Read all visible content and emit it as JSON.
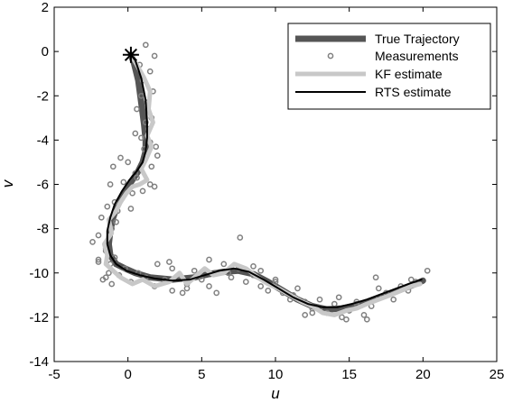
{
  "chart_data": {
    "type": "line",
    "title": "",
    "xlabel": "u",
    "ylabel": "v",
    "xlim": [
      -5,
      25
    ],
    "ylim": [
      -14,
      2
    ],
    "xticks": [
      -5,
      0,
      5,
      10,
      15,
      20,
      25
    ],
    "yticks": [
      -14,
      -12,
      -10,
      -8,
      -6,
      -4,
      -2,
      0,
      2
    ],
    "grid": false,
    "legend_position": "top-right",
    "start_marker": {
      "x": 0.2,
      "y": -0.15,
      "symbol": "asterisk"
    },
    "series": [
      {
        "name": "True Trajectory",
        "kind": "line",
        "color": "#555555",
        "x": [
          0.2,
          0.4,
          0.7,
          0.9,
          1.1,
          1.2,
          1.2,
          1.0,
          0.7,
          0.3,
          -0.2,
          -0.7,
          -1.0,
          -1.2,
          -1.3,
          -1.2,
          -0.8,
          -0.2,
          0.5,
          1.5,
          3.0,
          4.5,
          5.5,
          6.5,
          7.5,
          8.5,
          9.5,
          10.5,
          11.5,
          12.5,
          13.5,
          14.5,
          15.5,
          16.5,
          17.5,
          18.5,
          19.5,
          20.0
        ],
        "y": [
          -0.15,
          -0.5,
          -1.3,
          -2.3,
          -3.3,
          -4.0,
          -4.5,
          -5.0,
          -5.4,
          -5.8,
          -6.3,
          -6.9,
          -7.5,
          -8.1,
          -8.7,
          -9.2,
          -9.6,
          -9.8,
          -10.0,
          -10.2,
          -10.3,
          -10.2,
          -10.05,
          -9.95,
          -9.9,
          -10.05,
          -10.4,
          -10.8,
          -11.2,
          -11.5,
          -11.65,
          -11.6,
          -11.45,
          -11.25,
          -11.0,
          -10.75,
          -10.5,
          -10.35
        ]
      },
      {
        "name": "Measurements",
        "kind": "scatter",
        "color": "#808080",
        "x": [
          1.2,
          1.8,
          0.8,
          1.5,
          1.0,
          1.7,
          1.3,
          0.6,
          1.6,
          1.4,
          0.9,
          1.1,
          2.0,
          1.6,
          0.5,
          1.8,
          1.2,
          0.9,
          1.5,
          1.9,
          0.0,
          -0.5,
          -1.0,
          -1.2,
          -0.3,
          0.3,
          1.0,
          0.6,
          -0.9,
          -1.4,
          -1.8,
          -0.7,
          -1.1,
          -2.0,
          -1.5,
          -0.8,
          0.2,
          -1.5,
          -0.9,
          -1.2,
          -1.3,
          -2.0,
          -1.7,
          -2.4,
          -2.0,
          -1.5,
          -1.1,
          -0.6,
          -0.2,
          0.2,
          0.7,
          1.2,
          1.8,
          2.5,
          3.0,
          3.5,
          4.0,
          4.5,
          5.0,
          5.5,
          6.0,
          6.5,
          7.0,
          7.5,
          8.0,
          8.5,
          9.0,
          9.5,
          10.0,
          10.5,
          11.0,
          11.5,
          12.0,
          12.5,
          13.0,
          13.5,
          14.0,
          14.5,
          15.0,
          15.5,
          16.0,
          16.5,
          17.0,
          17.5,
          18.0,
          18.5,
          19.0,
          19.5,
          20.3,
          2.0,
          3.0,
          4.0,
          5.5,
          7.6,
          9.0,
          11.2,
          13.0,
          15.5,
          16.2,
          2.8,
          6.0,
          10.0,
          12.5,
          14.3,
          17.0,
          19.2,
          0.5,
          1.5,
          3.7,
          6.8,
          8.5,
          12.0,
          14.8,
          16.8
        ],
        "y": [
          0.3,
          -0.2,
          -0.6,
          -0.9,
          -1.3,
          -1.8,
          -2.3,
          -2.6,
          -3.0,
          -3.5,
          -3.9,
          -4.4,
          -4.7,
          -5.2,
          -5.5,
          -6.1,
          -3.2,
          -2.0,
          -4.1,
          -4.3,
          -5.0,
          -4.8,
          -5.2,
          -6.0,
          -5.9,
          -6.4,
          -6.3,
          -5.7,
          -6.8,
          -7.0,
          -7.5,
          -7.2,
          -8.0,
          -8.3,
          -8.9,
          -7.7,
          -7.1,
          -9.0,
          -9.3,
          -9.6,
          -10.0,
          -9.4,
          -10.3,
          -8.6,
          -9.5,
          -10.2,
          -10.5,
          -10.1,
          -9.8,
          -10.4,
          -10.0,
          -10.2,
          -10.6,
          -10.3,
          -10.8,
          -10.1,
          -10.7,
          -9.9,
          -10.3,
          -10.6,
          -10.0,
          -9.6,
          -10.2,
          -9.8,
          -10.4,
          -10.1,
          -10.6,
          -10.8,
          -10.3,
          -10.9,
          -11.2,
          -10.7,
          -11.3,
          -11.6,
          -11.2,
          -11.8,
          -11.4,
          -12.0,
          -11.7,
          -11.3,
          -11.9,
          -11.5,
          -11.1,
          -10.9,
          -11.2,
          -10.6,
          -10.8,
          -10.4,
          -9.9,
          -9.6,
          -9.8,
          -10.5,
          -9.4,
          -8.4,
          -9.9,
          -11.0,
          -11.6,
          -11.4,
          -12.1,
          -9.5,
          -10.9,
          -10.4,
          -11.8,
          -11.1,
          -10.7,
          -10.3,
          -3.7,
          -6.0,
          -10.9,
          -10.0,
          -9.7,
          -11.9,
          -12.1,
          -10.2
        ]
      },
      {
        "name": "KF estimate",
        "kind": "line",
        "color": "#c8c8c8",
        "x": [
          0.2,
          0.6,
          1.1,
          1.5,
          1.4,
          1.7,
          1.3,
          1.6,
          1.2,
          0.9,
          1.3,
          0.8,
          0.3,
          -0.1,
          -0.5,
          -0.8,
          -1.3,
          -1.1,
          -1.6,
          -1.4,
          -1.5,
          -1.0,
          -0.5,
          0.3,
          1.0,
          1.8,
          2.8,
          3.5,
          4.0,
          4.5,
          5.2,
          5.8,
          6.5,
          7.2,
          8.0,
          8.8,
          9.5,
          10.2,
          11.0,
          11.8,
          12.5,
          13.2,
          14.0,
          14.8,
          15.5,
          16.2,
          17.0,
          17.8,
          18.5,
          19.2,
          19.8
        ],
        "y": [
          -0.15,
          -0.6,
          -1.2,
          -1.8,
          -2.6,
          -3.2,
          -3.8,
          -4.3,
          -4.9,
          -5.3,
          -5.8,
          -6.0,
          -6.1,
          -6.4,
          -6.8,
          -7.2,
          -7.6,
          -8.2,
          -8.7,
          -9.2,
          -9.6,
          -9.9,
          -10.2,
          -10.5,
          -10.3,
          -10.6,
          -10.4,
          -10.0,
          -10.5,
          -10.2,
          -9.8,
          -10.1,
          -10.0,
          -9.6,
          -9.8,
          -10.2,
          -10.5,
          -10.7,
          -11.0,
          -11.3,
          -11.5,
          -11.8,
          -11.9,
          -11.7,
          -11.6,
          -11.4,
          -11.2,
          -11.0,
          -10.8,
          -10.6,
          -10.5
        ]
      },
      {
        "name": "RTS estimate",
        "kind": "line",
        "color": "#000000",
        "x": [
          0.2,
          0.5,
          0.9,
          1.2,
          1.3,
          1.3,
          1.2,
          1.0,
          0.6,
          0.1,
          -0.4,
          -0.9,
          -1.2,
          -1.4,
          -1.4,
          -1.2,
          -0.8,
          -0.1,
          0.8,
          1.8,
          3.0,
          4.2,
          5.2,
          6.2,
          7.2,
          8.2,
          9.2,
          10.2,
          11.2,
          12.2,
          13.2,
          14.2,
          15.2,
          16.2,
          17.2,
          18.2,
          19.2,
          19.9
        ],
        "y": [
          -0.15,
          -0.4,
          -1.2,
          -2.2,
          -3.2,
          -3.9,
          -4.5,
          -5.0,
          -5.4,
          -5.8,
          -6.3,
          -6.9,
          -7.5,
          -8.1,
          -8.7,
          -9.2,
          -9.6,
          -9.9,
          -10.1,
          -10.25,
          -10.35,
          -10.3,
          -10.1,
          -9.9,
          -9.8,
          -9.95,
          -10.3,
          -10.7,
          -11.1,
          -11.4,
          -11.55,
          -11.55,
          -11.4,
          -11.2,
          -10.95,
          -10.7,
          -10.45,
          -10.3
        ]
      }
    ]
  }
}
